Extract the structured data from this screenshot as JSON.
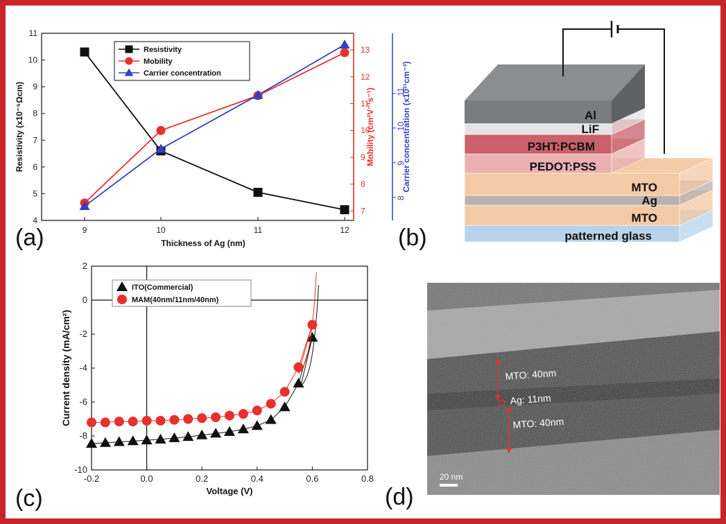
{
  "panel_labels": {
    "a": "(a)",
    "b": "(b)",
    "c": "(c)",
    "d": "(d)"
  },
  "chart_data": [
    {
      "panel": "(a)",
      "type": "line",
      "xlabel": "Thickness of Ag (nm)",
      "categories": [
        9,
        10,
        11,
        12
      ],
      "xticks": [
        "9",
        "10",
        "11",
        "12"
      ],
      "series": [
        {
          "name": "Resistivity",
          "axis": "left",
          "color": "#111111",
          "marker": "square",
          "values": [
            10.3,
            6.6,
            5.05,
            4.4
          ]
        },
        {
          "name": "Mobility",
          "axis": "right1",
          "color": "#e8302c",
          "marker": "circle",
          "values": [
            7.3,
            10.0,
            11.3,
            12.9
          ]
        },
        {
          "name": "Carrier concentration",
          "axis": "right2",
          "color": "#3540c0",
          "marker": "triangle",
          "values": [
            7.75,
            9.4,
            10.95,
            12.4
          ]
        }
      ],
      "axes": {
        "left": {
          "label": "Resistivity (x10⁻⁵Ωcm)",
          "ylim": [
            4,
            11
          ],
          "ticks": [
            "4",
            "5",
            "6",
            "7",
            "8",
            "9",
            "10",
            "11"
          ],
          "color": "#111111"
        },
        "right1": {
          "label": "Mobility (cm²V⁻¹s⁻¹)",
          "ylim": [
            6.65,
            13.62
          ],
          "ticks": [
            "7",
            "8",
            "9",
            "10",
            "11",
            "12",
            "13"
          ],
          "color": "#e8302c"
        },
        "right2": {
          "label": "Carrier concentration (x10²¹cm⁻³)",
          "ylim": [
            7.34,
            12.73
          ],
          "ticks": [
            "8",
            "9",
            "10",
            "11"
          ],
          "color": "#3540c0"
        }
      },
      "legend_position": "top-center"
    },
    {
      "panel": "(c)",
      "type": "scatter",
      "xlabel": "Voltage (V)",
      "ylabel": "Current density (mA/cm²)",
      "xlim": [
        -0.2,
        0.8
      ],
      "ylim": [
        -10,
        2
      ],
      "xticks": [
        "-0.2",
        "0.0",
        "0.2",
        "0.4",
        "0.6",
        "0.8"
      ],
      "yticks": [
        "-10",
        "-8",
        "-6",
        "-4",
        "-2",
        "0",
        "2"
      ],
      "legend_position": "top-left",
      "series": [
        {
          "name": "ITO(Commercial)",
          "color": "#111111",
          "marker": "triangle",
          "x": [
            -0.2,
            -0.15,
            -0.1,
            -0.05,
            0,
            0.05,
            0.1,
            0.15,
            0.2,
            0.25,
            0.3,
            0.35,
            0.4,
            0.45,
            0.5,
            0.55,
            0.6
          ],
          "y": [
            -8.45,
            -8.4,
            -8.35,
            -8.3,
            -8.25,
            -8.2,
            -8.12,
            -8.05,
            -7.95,
            -7.85,
            -7.75,
            -7.6,
            -7.4,
            -7.05,
            -6.3,
            -4.9,
            -2.2
          ]
        },
        {
          "name": "MAM(40nm/11nm/40nm)",
          "color": "#e8302c",
          "marker": "circle",
          "x": [
            -0.2,
            -0.15,
            -0.1,
            -0.05,
            0,
            0.05,
            0.1,
            0.15,
            0.2,
            0.25,
            0.3,
            0.35,
            0.4,
            0.45,
            0.5,
            0.55,
            0.6
          ],
          "y": [
            -7.2,
            -7.2,
            -7.15,
            -7.15,
            -7.1,
            -7.1,
            -7.05,
            -7.0,
            -6.95,
            -6.9,
            -6.8,
            -6.7,
            -6.5,
            -6.1,
            -5.4,
            -3.95,
            -1.45
          ]
        }
      ]
    }
  ],
  "device_stack": {
    "panel": "(b)",
    "layers": [
      {
        "label": "Al",
        "color": "#7a7c80"
      },
      {
        "label": "LiF",
        "color": "#e4e4e6"
      },
      {
        "label": "P3HT:PCBM",
        "color": "#c9606a"
      },
      {
        "label": "PEDOT:PSS",
        "color": "#eab1b0"
      },
      {
        "label": "MTO",
        "color": "#f4c9a5"
      },
      {
        "label": "Ag",
        "color": "#b9b2ae"
      },
      {
        "label": "MTO",
        "color": "#f4c9a5"
      },
      {
        "label": "patterned glass",
        "color": "#b8d3ea"
      }
    ]
  },
  "tem": {
    "panel": "(d)",
    "labels": {
      "top": "MTO: 40nm",
      "mid": "Ag: 11nm",
      "bottom": "MTO: 40nm",
      "scale": "20 nm"
    }
  },
  "colors": {
    "frame": "#c8242b",
    "axis": "#111111",
    "red": "#e8302c",
    "blue": "#3540c0"
  }
}
